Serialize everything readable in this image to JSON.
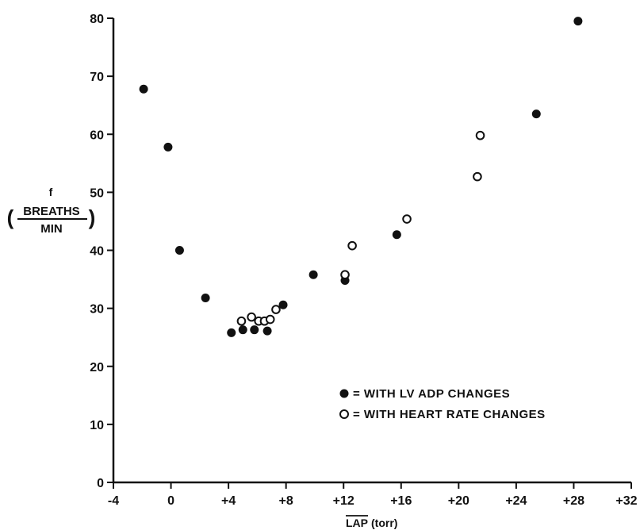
{
  "chart_data": {
    "type": "scatter",
    "title": "",
    "xlabel": "LAP (torr)",
    "xlabel_main": "LAP",
    "xlabel_unit": "(torr)",
    "ylabel_symbol": "f",
    "ylabel_numerator": "BREATHS",
    "ylabel_denominator": "MIN",
    "ylabel_open_paren": "(",
    "ylabel_close_paren": ")",
    "xlim": [
      -4,
      32
    ],
    "ylim": [
      0,
      80
    ],
    "xticks": [
      -4,
      0,
      4,
      8,
      12,
      16,
      20,
      24,
      28,
      32
    ],
    "xtick_labels": [
      "-4",
      "0",
      "+4",
      "+8",
      "+12",
      "+16",
      "+20",
      "+24",
      "+28",
      "+32"
    ],
    "yticks": [
      0,
      10,
      20,
      30,
      40,
      50,
      60,
      70,
      80
    ],
    "ytick_labels": [
      "0",
      "10",
      "20",
      "30",
      "40",
      "50",
      "60",
      "70",
      "80"
    ],
    "grid": false,
    "legend_position": "lower-right",
    "series": [
      {
        "name": "= WITH LV ADP CHANGES",
        "marker": "filled-circle",
        "x": [
          -1.9,
          -0.2,
          0.6,
          2.4,
          4.2,
          5.0,
          5.8,
          6.7,
          7.8,
          9.9,
          12.1,
          15.7,
          25.4,
          28.3
        ],
        "y": [
          67.8,
          57.8,
          40.0,
          31.8,
          25.8,
          26.3,
          26.3,
          26.1,
          30.6,
          35.8,
          34.8,
          42.7,
          63.5,
          79.5
        ]
      },
      {
        "name": "= WITH HEART RATE CHANGES",
        "marker": "open-circle",
        "x": [
          4.9,
          5.6,
          6.1,
          6.5,
          6.9,
          7.3,
          12.1,
          12.6,
          16.4,
          21.3,
          21.5
        ],
        "y": [
          27.8,
          28.5,
          27.8,
          27.8,
          28.1,
          29.8,
          35.8,
          40.8,
          45.4,
          52.7,
          59.8
        ]
      }
    ]
  }
}
